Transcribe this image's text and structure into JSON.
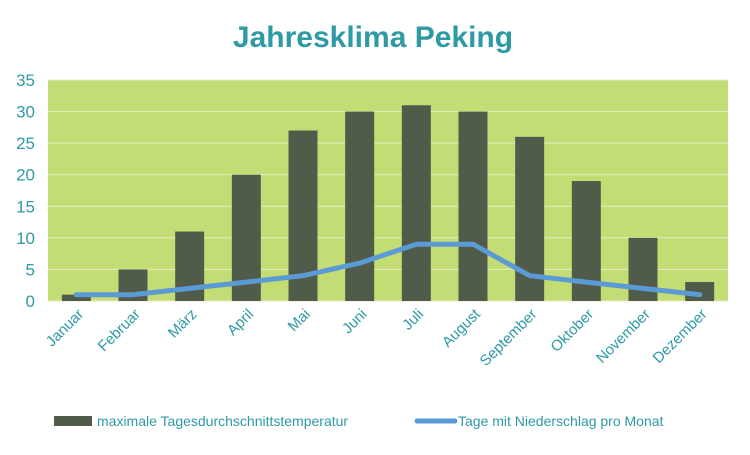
{
  "colors": {
    "title": "#2e9aa6",
    "plot_background": "#c3dc73",
    "bar": "#515b4a",
    "line": "#5b9bd5",
    "tick_text": "#2e9aa6"
  },
  "chart_data": {
    "type": "bar",
    "title": "Jahresklima Peking",
    "categories": [
      "Januar",
      "Februar",
      "März",
      "April",
      "Mai",
      "Juni",
      "Juli",
      "August",
      "September",
      "Oktober",
      "November",
      "Dezember"
    ],
    "series": [
      {
        "name": "maximale Tagesdurchschnittstemperatur",
        "type": "bar",
        "values": [
          1,
          5,
          11,
          20,
          27,
          30,
          31,
          30,
          26,
          19,
          10,
          3
        ]
      },
      {
        "name": "Tage mit Niederschlag pro Monat",
        "type": "line",
        "values": [
          1,
          1,
          2,
          3,
          4,
          6,
          9,
          9,
          4,
          3,
          2,
          1
        ]
      }
    ],
    "ylim": [
      0,
      35
    ],
    "yticks": [
      0,
      5,
      10,
      15,
      20,
      25,
      30,
      35
    ],
    "grid": true,
    "legend_position": "bottom"
  }
}
